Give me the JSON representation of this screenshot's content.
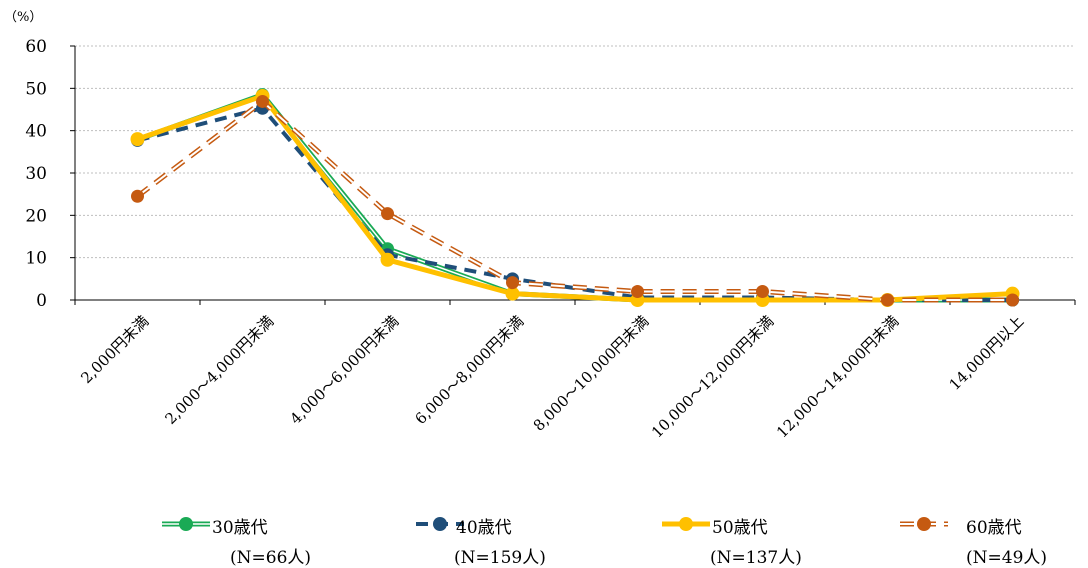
{
  "chart_data": {
    "type": "line",
    "unit_label": "（%）",
    "categories": [
      "2,000円未満",
      "2,000～4,000円未満",
      "4,000～6,000円未満",
      "6,000～8,000円未満",
      "8,000～10,000円未満",
      "10,000～12,000円未満",
      "12,000～14,000円未満",
      "14,000円以上"
    ],
    "yticks": [
      "0",
      "10",
      "20",
      "30",
      "40",
      "50",
      "60"
    ],
    "ylim": [
      0,
      60
    ],
    "grid": true,
    "legend_position": "bottom",
    "series": [
      {
        "name": "30歳代",
        "n_label": "(N=66人)",
        "color": "#1aaa55",
        "style": "double",
        "values": [
          37.9,
          48.5,
          12.1,
          1.5,
          0.0,
          0.0,
          0.0,
          0.0
        ]
      },
      {
        "name": "40歳代",
        "n_label": "(N=159人)",
        "color": "#1f4e79",
        "style": "dashed",
        "values": [
          37.7,
          45.3,
          10.7,
          5.0,
          0.6,
          0.6,
          0.0,
          0.0
        ]
      },
      {
        "name": "50歳代",
        "n_label": "(N=137人)",
        "color": "#ffc000",
        "style": "thick",
        "values": [
          38.0,
          48.2,
          9.5,
          1.5,
          0.0,
          0.0,
          0.0,
          1.5
        ]
      },
      {
        "name": "60歳代",
        "n_label": "(N=49人)",
        "color": "#c55a11",
        "style": "double-dashed",
        "values": [
          24.5,
          46.9,
          20.4,
          4.1,
          2.0,
          2.0,
          0.0,
          0.0
        ]
      }
    ]
  }
}
